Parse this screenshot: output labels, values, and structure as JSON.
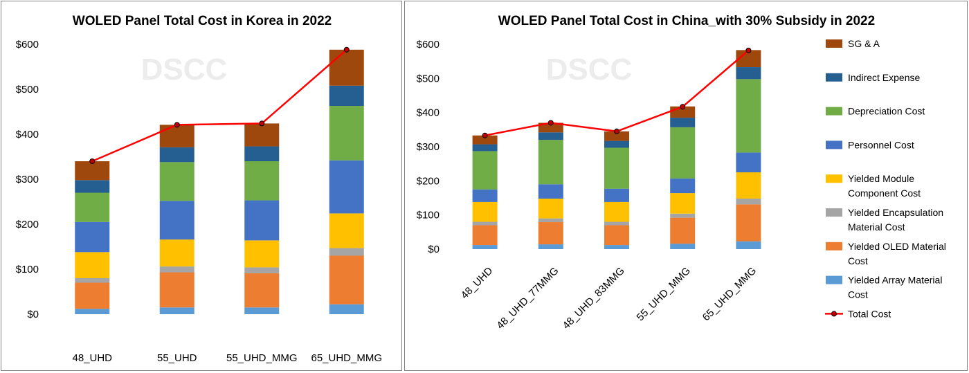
{
  "watermark": "DSCC",
  "colors": {
    "segments": [
      "#5B9BD5",
      "#ED7D31",
      "#A5A5A5",
      "#FFC000",
      "#4472C4",
      "#70AD47",
      "#255E91",
      "#9E480E"
    ],
    "total_line": "#FF0000",
    "total_marker_fill": "#C00000"
  },
  "legend": {
    "items": [
      {
        "label_lines": [
          "SG & A"
        ],
        "color": "#9E480E",
        "kind": "box"
      },
      {
        "label_lines": [
          "Indirect Expense"
        ],
        "color": "#255E91",
        "kind": "box"
      },
      {
        "label_lines": [
          "Depreciation Cost"
        ],
        "color": "#70AD47",
        "kind": "box"
      },
      {
        "label_lines": [
          "Personnel Cost"
        ],
        "color": "#4472C4",
        "kind": "box"
      },
      {
        "label_lines": [
          "Yielded Module",
          "Component Cost"
        ],
        "color": "#FFC000",
        "kind": "box"
      },
      {
        "label_lines": [
          "Yielded Encapsulation",
          "Material Cost"
        ],
        "color": "#A5A5A5",
        "kind": "box"
      },
      {
        "label_lines": [
          "Yielded OLED Material",
          "Cost"
        ],
        "color": "#ED7D31",
        "kind": "box"
      },
      {
        "label_lines": [
          "Yielded Array Material",
          "Cost"
        ],
        "color": "#5B9BD5",
        "kind": "box"
      },
      {
        "label_lines": [
          "Total Cost"
        ],
        "color": "#FF0000",
        "kind": "line"
      }
    ]
  },
  "chart_data": [
    {
      "type": "bar",
      "stacked": true,
      "title": "WOLED Panel Total Cost in Korea in 2022",
      "xlabel": "",
      "ylabel": "",
      "ylim": [
        0,
        600
      ],
      "yticks": [
        "$0",
        "$100",
        "$200",
        "$300",
        "$400",
        "$500",
        "$600"
      ],
      "categories": [
        "48_UHD",
        "55_UHD",
        "55_UHD_MMG",
        "65_UHD_MMG"
      ],
      "series": [
        {
          "name": "Yielded Array Material Cost",
          "values": [
            12,
            15,
            15,
            22
          ]
        },
        {
          "name": "Yielded OLED Material Cost",
          "values": [
            58,
            78,
            76,
            108
          ]
        },
        {
          "name": "Yielded Encapsulation Material Cost",
          "values": [
            10,
            13,
            13,
            17
          ]
        },
        {
          "name": "Yielded Module Component Cost",
          "values": [
            58,
            60,
            60,
            77
          ]
        },
        {
          "name": "Personnel Cost",
          "values": [
            67,
            86,
            89,
            118
          ]
        },
        {
          "name": "Depreciation Cost",
          "values": [
            65,
            86,
            87,
            121
          ]
        },
        {
          "name": "Indirect Expense",
          "values": [
            28,
            33,
            33,
            45
          ]
        },
        {
          "name": "SG & A",
          "values": [
            42,
            50,
            51,
            80
          ]
        }
      ],
      "total_cost": [
        340,
        421,
        424,
        588
      ],
      "legend": "none"
    },
    {
      "type": "bar",
      "stacked": true,
      "title": "WOLED Panel Total Cost in China_with 30% Subsidy in 2022",
      "xlabel": "",
      "ylabel": "",
      "ylim": [
        0,
        600
      ],
      "yticks": [
        "$0",
        "$100",
        "$200",
        "$300",
        "$400",
        "$500",
        "$600"
      ],
      "categories": [
        "48_UHD",
        "48_UHD_77MMG",
        "48_UHD_83MMG",
        "55_UHD_MMG",
        "65_UHD_MMG"
      ],
      "series": [
        {
          "name": "Yielded Array Material Cost",
          "values": [
            12,
            14,
            12,
            16,
            23
          ]
        },
        {
          "name": "Yielded OLED Material Cost",
          "values": [
            58,
            65,
            58,
            76,
            108
          ]
        },
        {
          "name": "Yielded Encapsulation Material Cost",
          "values": [
            10,
            11,
            10,
            12,
            17
          ]
        },
        {
          "name": "Yielded Module Component Cost",
          "values": [
            58,
            58,
            58,
            60,
            77
          ]
        },
        {
          "name": "Personnel Cost",
          "values": [
            37,
            42,
            39,
            43,
            58
          ]
        },
        {
          "name": "Depreciation Cost",
          "values": [
            112,
            130,
            120,
            150,
            215
          ]
        },
        {
          "name": "Indirect Expense",
          "values": [
            20,
            22,
            20,
            28,
            35
          ]
        },
        {
          "name": "SG & A",
          "values": [
            26,
            28,
            28,
            33,
            50
          ]
        }
      ],
      "total_cost": [
        333,
        370,
        345,
        417,
        582
      ],
      "legend": "right"
    }
  ]
}
